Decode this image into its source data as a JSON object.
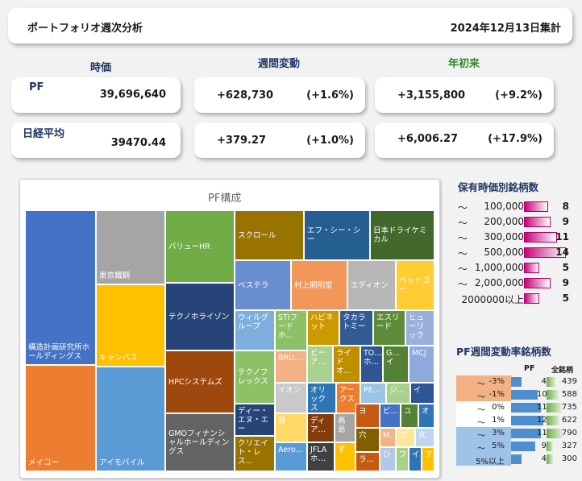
{
  "header": {
    "title": "ポートフォリオ週次分析",
    "date": "2024年12月13日集計"
  },
  "columns": {
    "value": "時価",
    "weekly": "週間変動",
    "ytd": "年初来"
  },
  "pf": {
    "label": "PF",
    "value": "39,696,640",
    "weekly_amount": "+628,730",
    "weekly_pct": "(+1.6%)",
    "ytd_amount": "+3,155,800",
    "ytd_pct": "(+9.2%)"
  },
  "nikkei": {
    "label": "日経平均",
    "value": "39470.44",
    "weekly_amount": "+379.27",
    "weekly_pct": "(+1.0%)",
    "ytd_amount": "+6,006.27",
    "ytd_pct": "(+17.9%)"
  },
  "treemap": {
    "title": "PF構成",
    "cells": [
      "構造計画研究所ホールディングス",
      "メイコー",
      "東京鐵鋼",
      "キャンバス",
      "アイモバイル",
      "バリューHR",
      "テクノホライゾン",
      "HPCシステムズ",
      "GMOフィナンシャルホールディングス",
      "スクロール",
      "エフ・シー・シー",
      "日本ドライケミカル",
      "ベステラ",
      "村上開明堂",
      "エディオン",
      "ペットゴー",
      "ウィルグループ",
      "STIフードホ…",
      "ハビネット",
      "タカラトミー",
      "エスリード",
      "ヒューリック",
      "テクノフレックス",
      "BRU…",
      "ビーア…",
      "ライドオ…",
      "TO…ホ…",
      "G…イ",
      "MCJ",
      "イオン",
      "オリックス",
      "アークス",
      "PE…",
      "ジ…",
      "イ",
      "ディー・エヌ・エー",
      "良",
      "ディア…",
      "高島",
      "ヨ",
      "ビ…",
      "ユ",
      "オ",
      "穴",
      "M…",
      "コ",
      "丸",
      "クリエイト・レス…",
      "Aero…",
      "JFLAホ…",
      "す",
      "ラ…",
      "ひ",
      "フ",
      "イ",
      "ア…"
    ]
  },
  "holdings_by_value": {
    "title": "保有時価別銘柄数",
    "rows": [
      {
        "mark": "～",
        "label": "100,000",
        "count": 8
      },
      {
        "mark": "～",
        "label": "200,000",
        "count": 9
      },
      {
        "mark": "～",
        "label": "300,000",
        "count": 11
      },
      {
        "mark": "～",
        "label": "500,000",
        "count": 14
      },
      {
        "mark": "～",
        "label": "1,000,000",
        "count": 5
      },
      {
        "mark": "～",
        "label": "2,000,000",
        "count": 9
      },
      {
        "mark": "",
        "label": "2000000以上",
        "count": 5
      }
    ],
    "max_count": 14
  },
  "weekly_change": {
    "title": "PF週間変動率銘柄数",
    "col_pf": "PF",
    "col_all": "全銘柄",
    "rows": [
      {
        "mark": "～",
        "label": "-3%",
        "pf": 4,
        "all": 439,
        "band": "neg"
      },
      {
        "mark": "～",
        "label": "-1%",
        "pf": 10,
        "all": 588,
        "band": "neg"
      },
      {
        "mark": "～",
        "label": "0%",
        "pf": 11,
        "all": 735,
        "band": "mid"
      },
      {
        "mark": "～",
        "label": "1%",
        "pf": 12,
        "all": 622,
        "band": "mid"
      },
      {
        "mark": "～",
        "label": "3%",
        "pf": 11,
        "all": 790,
        "band": "pos"
      },
      {
        "mark": "～",
        "label": "5%",
        "pf": 9,
        "all": 327,
        "band": "pos"
      },
      {
        "mark": "",
        "label": "5%以上",
        "pf": 4,
        "all": 300,
        "band": "pos"
      }
    ],
    "pf_max": 12,
    "all_max": 790,
    "colors": {
      "neg": "#f4b183",
      "mid": "#ffffff",
      "pos": "#9dc3e6",
      "pf_bar": "#4f8fd0",
      "all_bar": "#70ad47"
    }
  }
}
